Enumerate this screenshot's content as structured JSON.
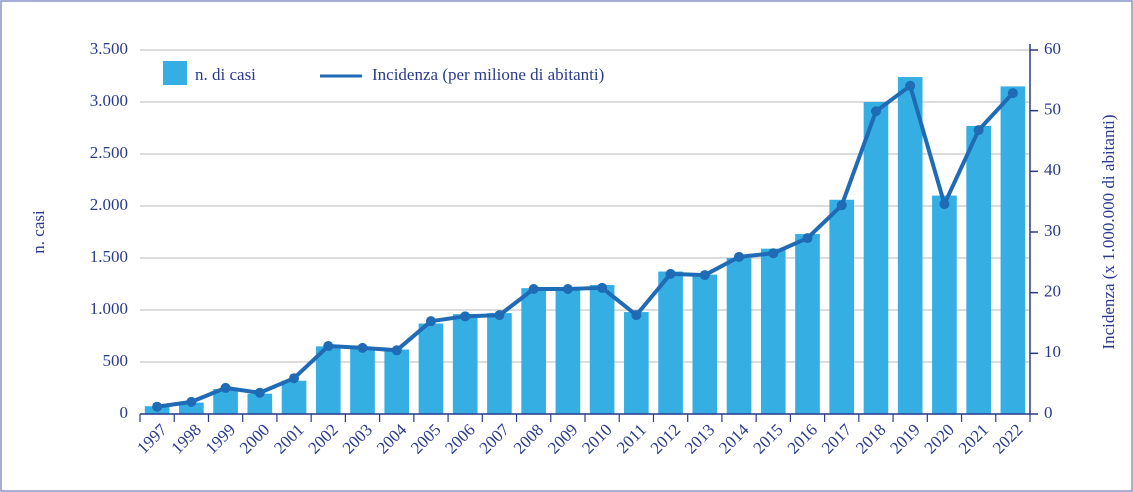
{
  "chart_data": {
    "type": "bar",
    "categories": [
      "1997",
      "1998",
      "1999",
      "2000",
      "2001",
      "2002",
      "2003",
      "2004",
      "2005",
      "2006",
      "2007",
      "2008",
      "2009",
      "2010",
      "2011",
      "2012",
      "2013",
      "2014",
      "2015",
      "2016",
      "2017",
      "2018",
      "2019",
      "2020",
      "2021",
      "2022"
    ],
    "series": [
      {
        "name": "n. di casi",
        "color": "#35aee3",
        "type": "bar",
        "values": [
          75,
          110,
          240,
          195,
          320,
          650,
          640,
          620,
          870,
          960,
          970,
          1210,
          1200,
          1240,
          980,
          1370,
          1340,
          1500,
          1590,
          1730,
          2060,
          3000,
          3240,
          2100,
          2770,
          3150
        ]
      },
      {
        "name": "Incidenza (per milione di abitanti)",
        "color": "#1f6bb5",
        "type": "line",
        "axis": "y2",
        "values": [
          1.2,
          2.0,
          4.3,
          3.5,
          5.9,
          11.2,
          10.9,
          10.5,
          15.3,
          16.1,
          16.3,
          20.6,
          20.6,
          20.8,
          16.3,
          23.1,
          22.9,
          25.9,
          26.5,
          29.0,
          34.4,
          49.9,
          54.1,
          34.6,
          46.8,
          52.9
        ]
      }
    ],
    "ylabel": "n. casi",
    "y2label": "Incidenza (x 1.000.000 di abitanti)",
    "ylim": [
      0,
      3500
    ],
    "yticks": [
      0,
      500,
      {
        "value": 1000,
        "label": "1.000"
      },
      {
        "value": 1500,
        "label": "1.500"
      },
      {
        "value": 2000,
        "label": "2.000"
      },
      {
        "value": 2500,
        "label": "2.500"
      },
      {
        "value": 3000,
        "label": "3.000"
      },
      {
        "value": 3500,
        "label": "3.500"
      }
    ],
    "y2lim": [
      0,
      60
    ],
    "y2ticks": [
      0,
      10,
      20,
      30,
      40,
      50,
      60
    ],
    "grid": true,
    "legend": "top-left"
  }
}
